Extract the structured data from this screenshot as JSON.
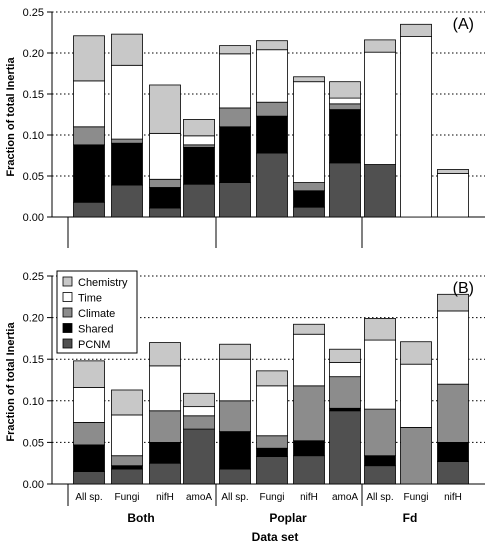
{
  "figure": {
    "ylabel": "Fraction of total Inertia",
    "xlabel": "Data set",
    "groups": [
      "Both",
      "Poplar",
      "Fd"
    ]
  },
  "legend": {
    "entries": [
      {
        "name": "Chemistry",
        "color": "#c8c8c8"
      },
      {
        "name": "Time",
        "color": "#ffffff"
      },
      {
        "name": "Climate",
        "color": "#8c8c8c"
      },
      {
        "name": "Shared",
        "color": "#000000"
      },
      {
        "name": "PCNM",
        "color": "#505050"
      }
    ],
    "placement": "top-left (panel B)"
  },
  "colors": {
    "Chemistry": "#c8c8c8",
    "Time": "#ffffff",
    "Climate": "#8c8c8c",
    "Shared": "#000000",
    "PCNM": "#505050"
  },
  "chart_data": [
    {
      "type": "bar",
      "stacked": true,
      "panel_label": "(A)",
      "ylabel": "Fraction of total Inertia",
      "ylim": [
        0,
        0.25
      ],
      "yticks": [
        "0.00",
        "0.05",
        "0.10",
        "0.15",
        "0.20",
        "0.25"
      ],
      "grid": "horizontal dotted",
      "categories": [
        "All sp.",
        "Fungi",
        "nifH",
        "amoA",
        "All sp.",
        "Fungi",
        "nifH",
        "amoA",
        "All sp.",
        "Fungi",
        "nifH"
      ],
      "tick_labels_shown": false,
      "series": [
        {
          "name": "PCNM",
          "values": [
            0.018,
            0.039,
            0.011,
            0.04,
            0.042,
            0.078,
            0.012,
            0.066,
            0.064,
            0.0,
            0.0
          ]
        },
        {
          "name": "Shared",
          "values": [
            0.07,
            0.051,
            0.025,
            0.045,
            0.068,
            0.045,
            0.02,
            0.065,
            0.0,
            0.0,
            0.0
          ]
        },
        {
          "name": "Climate",
          "values": [
            0.022,
            0.005,
            0.01,
            0.003,
            0.023,
            0.017,
            0.01,
            0.007,
            0.0,
            0.0,
            0.0
          ]
        },
        {
          "name": "Time",
          "values": [
            0.056,
            0.09,
            0.056,
            0.011,
            0.066,
            0.064,
            0.123,
            0.007,
            0.137,
            0.22,
            0.053
          ]
        },
        {
          "name": "Chemistry",
          "values": [
            0.055,
            0.038,
            0.059,
            0.02,
            0.01,
            0.011,
            0.006,
            0.02,
            0.015,
            0.015,
            0.005
          ]
        }
      ]
    },
    {
      "type": "bar",
      "stacked": true,
      "panel_label": "(B)",
      "ylabel": "Fraction of total Inertia",
      "ylim": [
        0,
        0.25
      ],
      "yticks": [
        "0.00",
        "0.05",
        "0.10",
        "0.15",
        "0.20",
        "0.25"
      ],
      "grid": "horizontal dotted",
      "categories": [
        "All sp.",
        "Fungi",
        "nifH",
        "amoA",
        "All sp.",
        "Fungi",
        "nifH",
        "amoA",
        "All sp.",
        "Fungi",
        "nifH"
      ],
      "tick_labels_shown": true,
      "series": [
        {
          "name": "PCNM",
          "values": [
            0.015,
            0.018,
            0.025,
            0.066,
            0.018,
            0.033,
            0.034,
            0.088,
            0.022,
            0.0,
            0.027
          ]
        },
        {
          "name": "Shared",
          "values": [
            0.032,
            0.004,
            0.025,
            0.0,
            0.045,
            0.01,
            0.018,
            0.003,
            0.012,
            0.0,
            0.023
          ]
        },
        {
          "name": "Climate",
          "values": [
            0.027,
            0.012,
            0.038,
            0.016,
            0.037,
            0.015,
            0.066,
            0.038,
            0.056,
            0.068,
            0.07
          ]
        },
        {
          "name": "Time",
          "values": [
            0.042,
            0.049,
            0.054,
            0.011,
            0.05,
            0.06,
            0.062,
            0.017,
            0.083,
            0.076,
            0.088
          ]
        },
        {
          "name": "Chemistry",
          "values": [
            0.032,
            0.03,
            0.028,
            0.016,
            0.018,
            0.018,
            0.012,
            0.016,
            0.026,
            0.027,
            0.02
          ]
        }
      ]
    }
  ]
}
